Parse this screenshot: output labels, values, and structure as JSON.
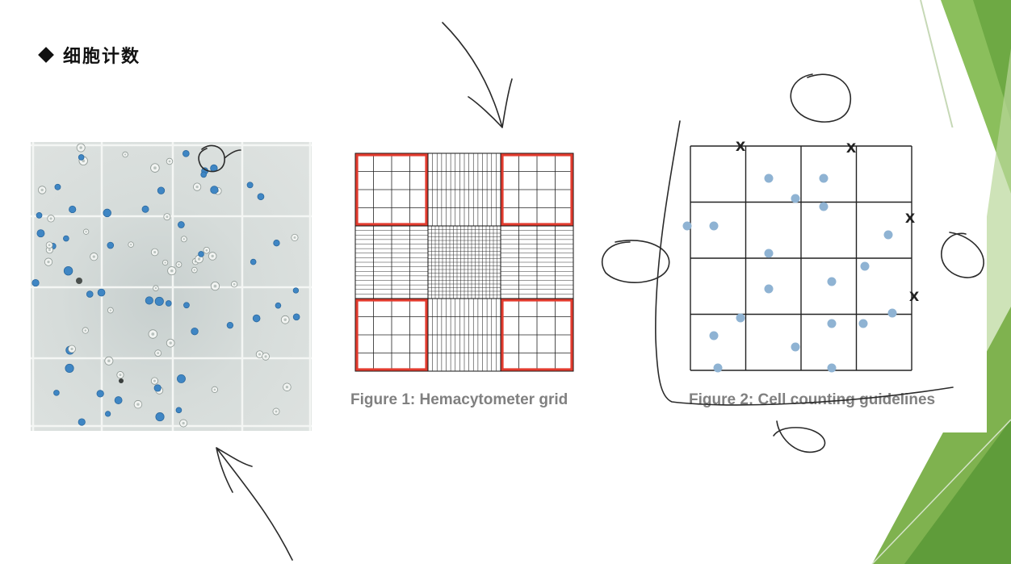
{
  "slide": {
    "title": "细胞计数",
    "theme_colors": {
      "green_dark": "#5e9a3a",
      "green_mid": "#7db34d",
      "green_light": "#c9dfb0"
    }
  },
  "micrograph": {
    "description_icon": "microscope-photo",
    "cell_colors": {
      "stained": "#3f86c4",
      "unstained": "#f2f4f2"
    }
  },
  "figure1": {
    "caption": "Figure 1: Hemacytometer grid",
    "highlight_color": "#e23b2e"
  },
  "figure2": {
    "caption": "Figure 2: Cell counting guidelines",
    "grid": {
      "rows": 4,
      "cols": 4
    },
    "cell_color": "#8fb3d3",
    "marker_symbol": "X"
  },
  "annotations": {
    "ink_color": "#2a2a2a"
  }
}
